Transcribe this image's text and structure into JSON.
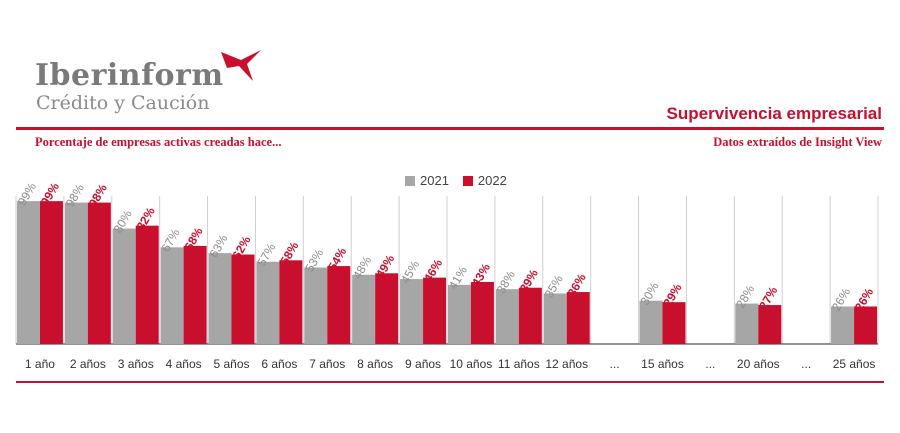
{
  "brand": {
    "name": "Iberinform",
    "subname": "Crédito y Caución",
    "logo_icon": "bird-icon",
    "accent": "#c8102e"
  },
  "header": {
    "headline": "Supervivencia empresarial",
    "subtitle": "Porcentaje de empresas activas creadas hace...",
    "source": "Datos extraídos de Insight View"
  },
  "chart_data": {
    "type": "bar",
    "categories": [
      "1 año",
      "2 años",
      "3 años",
      "4 años",
      "5 años",
      "6 años",
      "7 años",
      "8 años",
      "9 años",
      "10 años",
      "11 años",
      "12 años",
      "...",
      "15 años",
      "...",
      "20 años",
      "...",
      "25 años"
    ],
    "series": [
      {
        "name": "2021",
        "color": "#a6a6a6",
        "values": [
          99,
          98,
          80,
          67,
          63,
          57,
          53,
          48,
          45,
          41,
          38,
          35,
          null,
          30,
          null,
          28,
          null,
          26
        ]
      },
      {
        "name": "2022",
        "color": "#c8102e",
        "values": [
          99,
          98,
          82,
          68,
          62,
          58,
          54,
          49,
          46,
          43,
          39,
          36,
          null,
          29,
          null,
          27,
          null,
          26
        ]
      }
    ],
    "value_suffix": "%",
    "ylim": [
      0,
      100
    ],
    "legend_position": "top-center",
    "grid": "vertical separators"
  }
}
